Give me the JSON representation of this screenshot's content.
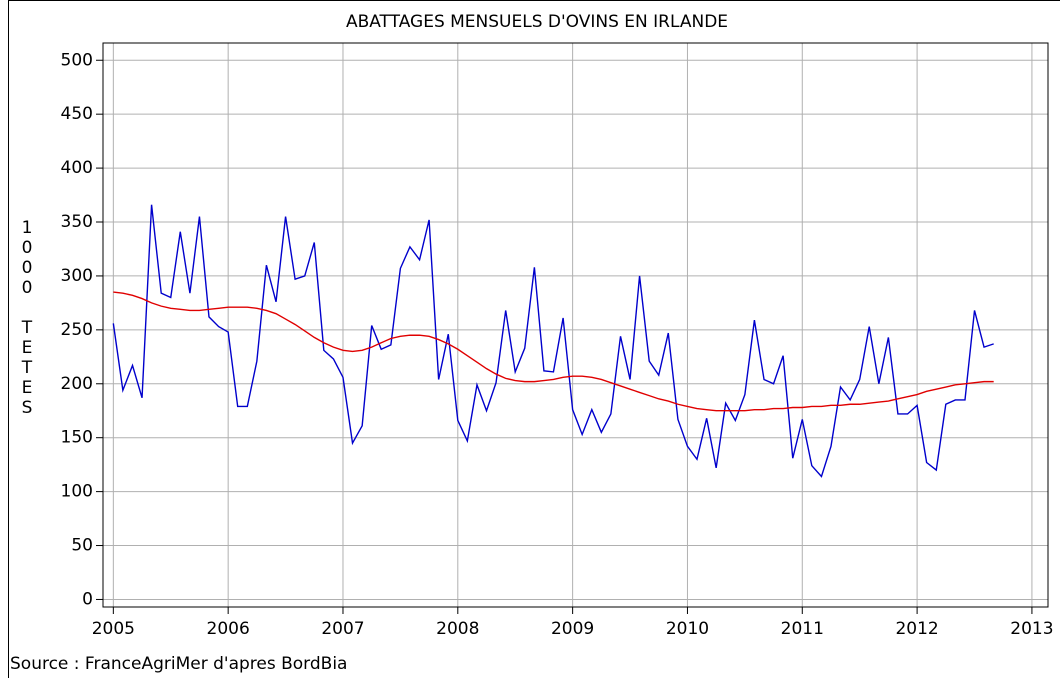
{
  "chart_data": {
    "type": "line",
    "title": "ABATTAGES MENSUELS D'OVINS EN IRLANDE",
    "y_label": "1000 TETES",
    "source": "Source : FranceAgriMer d'apres BordBia",
    "x": [
      2005.0,
      2005.083,
      2005.167,
      2005.25,
      2005.333,
      2005.417,
      2005.5,
      2005.583,
      2005.667,
      2005.75,
      2005.833,
      2005.917,
      2006.0,
      2006.083,
      2006.167,
      2006.25,
      2006.333,
      2006.417,
      2006.5,
      2006.583,
      2006.667,
      2006.75,
      2006.833,
      2006.917,
      2007.0,
      2007.083,
      2007.167,
      2007.25,
      2007.333,
      2007.417,
      2007.5,
      2007.583,
      2007.667,
      2007.75,
      2007.833,
      2007.917,
      2008.0,
      2008.083,
      2008.167,
      2008.25,
      2008.333,
      2008.417,
      2008.5,
      2008.583,
      2008.667,
      2008.75,
      2008.833,
      2008.917,
      2009.0,
      2009.083,
      2009.167,
      2009.25,
      2009.333,
      2009.417,
      2009.5,
      2009.583,
      2009.667,
      2009.75,
      2009.833,
      2009.917,
      2010.0,
      2010.083,
      2010.167,
      2010.25,
      2010.333,
      2010.417,
      2010.5,
      2010.583,
      2010.667,
      2010.75,
      2010.833,
      2010.917,
      2011.0,
      2011.083,
      2011.167,
      2011.25,
      2011.333,
      2011.417,
      2011.5,
      2011.583,
      2011.667,
      2011.75,
      2011.833,
      2011.917,
      2012.0,
      2012.083,
      2012.167,
      2012.25,
      2012.333,
      2012.417,
      2012.5,
      2012.583,
      2012.667
    ],
    "series": [
      {
        "color": "#0000cc",
        "values": [
          256,
          194,
          217,
          187,
          366,
          284,
          280,
          341,
          284,
          355,
          262,
          253,
          248,
          179,
          179,
          221,
          310,
          276,
          355,
          297,
          300,
          331,
          231,
          223,
          206,
          145,
          161,
          254,
          232,
          236,
          307,
          327,
          315,
          352,
          204,
          246,
          166,
          147,
          199,
          175,
          201,
          268,
          211,
          233,
          308,
          212,
          211,
          261,
          176,
          153,
          176,
          155,
          172,
          244,
          204,
          300,
          221,
          208,
          247,
          167,
          142,
          130,
          168,
          122,
          182,
          166,
          190,
          259,
          204,
          200,
          226,
          131,
          167,
          124,
          114,
          142,
          197,
          185,
          204,
          253,
          200,
          243,
          172,
          172,
          180,
          127,
          120,
          181,
          185,
          185,
          268,
          234,
          237
        ]
      },
      {
        "color": "#e00000",
        "values": [
          285,
          284,
          282,
          279,
          275,
          272,
          270,
          269,
          268,
          268,
          269,
          270,
          271,
          271,
          271,
          270,
          268,
          265,
          260,
          255,
          249,
          243,
          238,
          234,
          231,
          230,
          231,
          234,
          238,
          242,
          244,
          245,
          245,
          244,
          241,
          237,
          232,
          226,
          220,
          214,
          209,
          205,
          203,
          202,
          202,
          203,
          204,
          206,
          207,
          207,
          206,
          204,
          201,
          198,
          195,
          192,
          189,
          186,
          184,
          181,
          179,
          177,
          176,
          175,
          175,
          175,
          175,
          176,
          176,
          177,
          177,
          178,
          178,
          179,
          179,
          180,
          180,
          181,
          181,
          182,
          183,
          184,
          186,
          188,
          190,
          193,
          195,
          197,
          199,
          200,
          201,
          202,
          202
        ]
      }
    ],
    "xlim": [
      2004.91,
      2013.14
    ],
    "xticks": [
      2005,
      2006,
      2007,
      2008,
      2009,
      2010,
      2011,
      2012,
      2013
    ],
    "ylim": [
      -7,
      516
    ],
    "yticks": [
      0,
      50,
      100,
      150,
      200,
      250,
      300,
      350,
      400,
      450,
      500
    ],
    "grid": true
  }
}
